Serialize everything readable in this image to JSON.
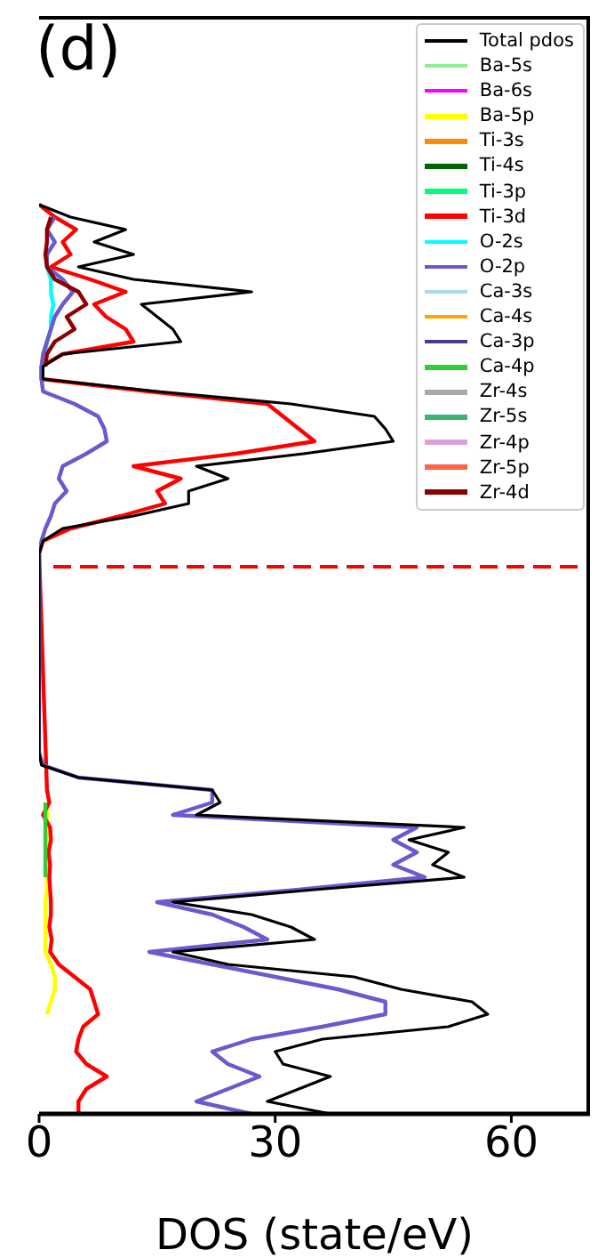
{
  "chart_data": {
    "type": "line",
    "orientation": "horizontal",
    "title": "(d)",
    "xlabel": "DOS (state/eV)",
    "categories": [
      null,
      null,
      null,
      null,
      null,
      null,
      null,
      null,
      null,
      null,
      null,
      null,
      null,
      null,
      null,
      null,
      null,
      null,
      null,
      null,
      null,
      null,
      null,
      null,
      null,
      null,
      null,
      null,
      null,
      null,
      null,
      null,
      null,
      null,
      null,
      null,
      null,
      null,
      null,
      null,
      null,
      null,
      null,
      null,
      null,
      null,
      null,
      null,
      null,
      null,
      null,
      null,
      null,
      null,
      null,
      null,
      null,
      null,
      null,
      null,
      null,
      null,
      null,
      null,
      null,
      null,
      null,
      null,
      null,
      null,
      null,
      null,
      null,
      null,
      null,
      null,
      null,
      null,
      null,
      null,
      null,
      null,
      null,
      null,
      null,
      null,
      null,
      null,
      null
    ],
    "xlim": [
      0,
      70
    ],
    "xticks": [
      0,
      30,
      60
    ],
    "tick_labels": "x",
    "legend": "top right",
    "line_style": "solid",
    "series": [
      {
        "name": "Total pdos",
        "color": "#000000",
        "values": [
          null,
          null,
          null,
          null,
          null,
          null,
          null,
          null,
          null,
          null,
          null,
          null,
          null,
          null,
          null,
          0,
          4,
          11,
          7,
          12,
          5,
          12,
          27,
          13,
          15,
          17,
          18,
          3,
          0.5,
          0.5,
          15,
          32,
          42.6,
          44,
          45,
          33.6,
          20,
          24,
          19,
          19,
          12,
          3,
          0.5,
          0,
          null,
          null,
          null,
          null,
          null,
          null,
          null,
          null,
          null,
          null,
          null,
          null,
          null,
          null,
          null,
          0,
          0.3,
          5,
          22,
          23,
          20,
          54,
          47,
          52,
          50,
          54,
          35,
          17,
          27,
          32,
          35,
          17,
          24,
          40,
          46,
          55,
          57,
          52,
          36,
          30,
          31,
          37,
          33,
          29,
          37
        ]
      },
      {
        "name": "Ba-5s",
        "color": "#90ee90",
        "values": [
          null,
          null,
          null,
          null,
          null,
          null,
          null,
          null,
          null,
          null,
          null,
          null,
          null,
          null,
          null,
          null,
          null,
          null,
          null,
          null,
          null,
          null,
          null,
          null,
          null,
          null,
          null,
          null,
          null,
          null,
          null,
          null,
          null,
          null,
          null,
          null,
          null,
          null,
          null,
          null,
          null,
          null,
          null,
          null,
          null,
          null,
          null,
          null,
          null,
          null,
          null,
          null,
          null,
          null,
          null,
          null,
          null,
          null,
          null,
          null,
          null,
          null,
          null,
          null,
          null,
          null,
          null,
          null,
          null,
          null,
          null,
          null,
          null,
          null,
          null,
          null,
          null,
          null,
          null,
          null,
          null,
          null,
          null,
          null,
          null,
          null,
          null,
          null,
          null
        ]
      },
      {
        "name": "Ba-6s",
        "color": "#ff00ff",
        "values": [
          null,
          null,
          null,
          null,
          null,
          null,
          null,
          null,
          null,
          null,
          null,
          null,
          null,
          null,
          null,
          null,
          null,
          null,
          null,
          null,
          null,
          null,
          null,
          null,
          null,
          null,
          null,
          null,
          null,
          null,
          null,
          null,
          null,
          null,
          null,
          null,
          null,
          null,
          null,
          null,
          null,
          null,
          null,
          null,
          null,
          null,
          null,
          null,
          null,
          null,
          null,
          null,
          null,
          null,
          null,
          null,
          null,
          null,
          null,
          null,
          null,
          null,
          null,
          null,
          null,
          null,
          null,
          null,
          null,
          null,
          null,
          null,
          null,
          null,
          null,
          null,
          null,
          null,
          null,
          null,
          null,
          null,
          null,
          null,
          null,
          null,
          null,
          null,
          null
        ]
      },
      {
        "name": "Ba-5p",
        "color": "#ffff00",
        "values": [
          null,
          null,
          null,
          null,
          null,
          null,
          null,
          null,
          null,
          null,
          null,
          null,
          null,
          null,
          null,
          null,
          null,
          null,
          null,
          null,
          null,
          null,
          null,
          null,
          null,
          null,
          null,
          null,
          null,
          null,
          null,
          null,
          null,
          null,
          null,
          null,
          null,
          null,
          null,
          null,
          null,
          null,
          null,
          null,
          null,
          null,
          null,
          null,
          null,
          null,
          null,
          null,
          null,
          null,
          null,
          null,
          null,
          null,
          null,
          null,
          null,
          null,
          null,
          1,
          1,
          1,
          1,
          1,
          1,
          1,
          1,
          0.8,
          0.8,
          0.8,
          0.8,
          0.8,
          1.5,
          2,
          2,
          1.5,
          1,
          null,
          null,
          null,
          null,
          null,
          null,
          null,
          null
        ]
      },
      {
        "name": "Ti-3s",
        "color": "#ff8c00",
        "values": [
          null,
          null,
          null,
          null,
          null,
          null,
          null,
          null,
          null,
          null,
          null,
          null,
          null,
          null,
          null,
          null,
          null,
          null,
          null,
          null,
          null,
          null,
          null,
          null,
          null,
          null,
          null,
          null,
          null,
          null,
          null,
          null,
          null,
          null,
          null,
          null,
          null,
          null,
          null,
          null,
          null,
          null,
          null,
          null,
          null,
          null,
          null,
          null,
          null,
          null,
          null,
          null,
          null,
          null,
          null,
          null,
          null,
          null,
          null,
          null,
          null,
          null,
          null,
          null,
          null,
          null,
          null,
          null,
          null,
          null,
          null,
          null,
          null,
          null,
          null,
          null,
          null,
          null,
          null,
          null,
          null,
          null,
          null,
          null,
          null,
          null,
          null,
          null,
          null
        ]
      },
      {
        "name": "Ti-4s",
        "color": "#006400",
        "values": [
          null,
          null,
          null,
          null,
          null,
          null,
          null,
          null,
          null,
          null,
          null,
          null,
          null,
          null,
          null,
          null,
          null,
          null,
          null,
          null,
          null,
          null,
          null,
          null,
          null,
          null,
          null,
          null,
          null,
          null,
          null,
          null,
          null,
          null,
          null,
          null,
          null,
          null,
          null,
          null,
          null,
          null,
          null,
          null,
          null,
          null,
          null,
          null,
          null,
          null,
          null,
          null,
          null,
          null,
          null,
          null,
          null,
          null,
          null,
          null,
          null,
          null,
          null,
          null,
          null,
          null,
          null,
          null,
          null,
          null,
          null,
          null,
          null,
          null,
          null,
          null,
          null,
          null,
          null,
          null,
          null,
          null,
          null,
          null,
          null,
          null,
          null,
          null,
          null
        ]
      },
      {
        "name": "Ti-3p",
        "color": "#00ff7f",
        "values": [
          null,
          null,
          null,
          null,
          null,
          null,
          null,
          null,
          null,
          null,
          null,
          null,
          null,
          null,
          null,
          null,
          null,
          null,
          null,
          null,
          null,
          null,
          null,
          null,
          null,
          null,
          null,
          null,
          null,
          null,
          null,
          null,
          null,
          null,
          null,
          null,
          null,
          null,
          null,
          null,
          null,
          null,
          null,
          null,
          null,
          null,
          null,
          null,
          null,
          null,
          null,
          null,
          null,
          null,
          null,
          null,
          null,
          null,
          null,
          null,
          null,
          null,
          null,
          null,
          null,
          null,
          null,
          null,
          null,
          null,
          null,
          null,
          null,
          null,
          null,
          null,
          null,
          null,
          null,
          null,
          null,
          null,
          null,
          null,
          null,
          null,
          null,
          null,
          null
        ]
      },
      {
        "name": "Ti-3d",
        "color": "#ff0000",
        "values": [
          null,
          null,
          null,
          null,
          null,
          null,
          null,
          null,
          null,
          null,
          null,
          null,
          null,
          null,
          null,
          0,
          2,
          4.7,
          3,
          4,
          1.5,
          6.5,
          11,
          7,
          8.5,
          11,
          12,
          3,
          0.3,
          0.3,
          14,
          29,
          31,
          33,
          35,
          25,
          12,
          18,
          15,
          16,
          10.4,
          4,
          0.5,
          0,
          null,
          null,
          null,
          null,
          null,
          null,
          null,
          null,
          null,
          null,
          null,
          null,
          null,
          null,
          null,
          null,
          null,
          null,
          1,
          1.3,
          0.5,
          1.4,
          1.5,
          1.2,
          1.4,
          1.3,
          1.4,
          1.5,
          1.5,
          1.3,
          1.6,
          1.4,
          2.5,
          4.5,
          6.5,
          7,
          7.5,
          5.6,
          5,
          4.7,
          6,
          8.6,
          6,
          5,
          5
        ]
      },
      {
        "name": "O-2s",
        "color": "#00ffff",
        "values": [
          null,
          null,
          null,
          null,
          null,
          null,
          null,
          null,
          null,
          null,
          null,
          null,
          null,
          null,
          null,
          null,
          null,
          null,
          null,
          null,
          1,
          1.5,
          1.5,
          1.8,
          1.5,
          1.5,
          1,
          0.8,
          null,
          null,
          null,
          null,
          null,
          null,
          null,
          null,
          null,
          null,
          null,
          null,
          null,
          null,
          null,
          null,
          null,
          null,
          null,
          null,
          null,
          null,
          null,
          null,
          null,
          null,
          null,
          null,
          null,
          null,
          null,
          null,
          null,
          null,
          null,
          null,
          null,
          null,
          null,
          null,
          null,
          null,
          null,
          null,
          null,
          null,
          null,
          null,
          null,
          null,
          null,
          null,
          null,
          null,
          null,
          null,
          null,
          null,
          null,
          null,
          null
        ]
      },
      {
        "name": "O-2p",
        "color": "#6a5acd",
        "values": [
          null,
          null,
          null,
          null,
          null,
          null,
          null,
          null,
          null,
          null,
          null,
          null,
          null,
          null,
          null,
          null,
          2,
          1,
          2,
          1,
          1,
          3,
          4.3,
          3,
          2,
          1.5,
          1,
          0.5,
          0.3,
          0.3,
          0.5,
          4.5,
          7.5,
          8.3,
          8.6,
          6,
          3,
          2.5,
          3.5,
          2,
          1.5,
          0.8,
          0.3,
          0,
          null,
          null,
          null,
          null,
          null,
          null,
          null,
          null,
          null,
          null,
          null,
          null,
          null,
          null,
          null,
          0,
          0.5,
          5,
          22,
          22,
          17,
          48,
          45,
          48,
          45,
          49,
          33,
          15,
          22,
          26,
          29,
          14,
          22,
          30,
          38,
          44,
          44,
          36,
          27,
          22,
          24,
          28,
          24,
          20,
          27
        ]
      },
      {
        "name": "Ca-3s",
        "color": "#add8e6",
        "values": [
          null,
          null,
          null,
          null,
          null,
          null,
          null,
          null,
          null,
          null,
          null,
          null,
          null,
          null,
          null,
          null,
          null,
          null,
          null,
          null,
          null,
          null,
          null,
          null,
          null,
          null,
          null,
          null,
          null,
          null,
          null,
          null,
          null,
          null,
          null,
          null,
          null,
          null,
          null,
          null,
          null,
          null,
          null,
          null,
          null,
          null,
          null,
          null,
          null,
          null,
          null,
          null,
          null,
          null,
          null,
          null,
          null,
          null,
          null,
          null,
          null,
          null,
          null,
          null,
          null,
          null,
          null,
          null,
          null,
          null,
          null,
          null,
          null,
          null,
          null,
          null,
          null,
          null,
          null,
          null,
          null,
          null,
          null,
          null,
          null,
          null,
          null,
          null,
          null
        ]
      },
      {
        "name": "Ca-4s",
        "color": "#ffa500",
        "values": [
          null,
          null,
          null,
          null,
          null,
          null,
          null,
          null,
          null,
          null,
          null,
          null,
          null,
          null,
          null,
          null,
          null,
          null,
          null,
          null,
          null,
          null,
          null,
          null,
          null,
          null,
          null,
          null,
          null,
          null,
          null,
          null,
          null,
          null,
          null,
          null,
          null,
          null,
          null,
          null,
          null,
          null,
          null,
          null,
          null,
          null,
          null,
          null,
          null,
          null,
          null,
          null,
          null,
          null,
          null,
          null,
          null,
          null,
          null,
          null,
          null,
          null,
          null,
          null,
          null,
          null,
          null,
          null,
          null,
          null,
          null,
          null,
          null,
          null,
          null,
          null,
          null,
          null,
          null,
          null,
          null,
          null,
          null,
          null,
          null,
          null,
          null,
          null,
          null
        ]
      },
      {
        "name": "Ca-3p",
        "color": "#483d8b",
        "values": [
          null,
          null,
          null,
          null,
          null,
          null,
          null,
          null,
          null,
          null,
          null,
          null,
          null,
          null,
          null,
          null,
          null,
          null,
          null,
          null,
          null,
          null,
          null,
          null,
          null,
          null,
          null,
          null,
          null,
          null,
          null,
          null,
          null,
          null,
          null,
          null,
          null,
          null,
          null,
          null,
          null,
          null,
          null,
          null,
          null,
          null,
          null,
          null,
          null,
          null,
          null,
          null,
          null,
          null,
          null,
          null,
          null,
          null,
          null,
          null,
          null,
          null,
          null,
          null,
          null,
          null,
          null,
          null,
          null,
          null,
          null,
          null,
          null,
          null,
          null,
          null,
          null,
          null,
          null,
          null,
          null,
          null,
          null,
          null,
          null,
          null,
          null,
          null,
          null
        ]
      },
      {
        "name": "Ca-4p",
        "color": "#32cd32",
        "values": [
          null,
          null,
          null,
          null,
          null,
          null,
          null,
          null,
          null,
          null,
          null,
          null,
          null,
          null,
          null,
          null,
          null,
          null,
          null,
          null,
          null,
          null,
          null,
          null,
          null,
          null,
          null,
          null,
          null,
          null,
          null,
          null,
          null,
          null,
          null,
          null,
          null,
          null,
          null,
          null,
          null,
          null,
          null,
          null,
          null,
          null,
          null,
          null,
          null,
          null,
          null,
          null,
          null,
          null,
          null,
          null,
          null,
          null,
          null,
          null,
          null,
          null,
          null,
          0.8,
          0.8,
          0.8,
          0.8,
          0.8,
          0.8,
          0.8,
          null,
          null,
          null,
          null,
          null,
          null,
          null,
          null,
          null,
          null,
          null,
          null,
          null,
          null,
          null,
          null,
          null,
          null,
          null
        ]
      },
      {
        "name": "Zr-4s",
        "color": "#a9a9a9",
        "values": [
          null,
          null,
          null,
          null,
          null,
          null,
          null,
          null,
          null,
          null,
          null,
          null,
          null,
          null,
          null,
          null,
          null,
          null,
          null,
          null,
          null,
          null,
          null,
          null,
          null,
          null,
          null,
          null,
          null,
          null,
          null,
          null,
          null,
          null,
          null,
          null,
          null,
          null,
          null,
          null,
          null,
          null,
          null,
          null,
          null,
          null,
          null,
          null,
          null,
          null,
          null,
          null,
          null,
          null,
          null,
          null,
          null,
          null,
          null,
          null,
          null,
          null,
          null,
          null,
          null,
          null,
          null,
          null,
          null,
          null,
          null,
          null,
          null,
          null,
          null,
          null,
          null,
          null,
          null,
          null,
          null,
          null,
          null,
          null,
          null,
          null,
          null,
          null,
          null
        ]
      },
      {
        "name": "Zr-5s",
        "color": "#3cb371",
        "values": [
          null,
          null,
          null,
          null,
          null,
          null,
          null,
          null,
          null,
          null,
          null,
          null,
          null,
          null,
          null,
          null,
          null,
          null,
          null,
          null,
          null,
          null,
          null,
          null,
          null,
          null,
          null,
          null,
          null,
          null,
          null,
          null,
          null,
          null,
          null,
          null,
          null,
          null,
          null,
          null,
          null,
          null,
          null,
          null,
          null,
          null,
          null,
          null,
          null,
          null,
          null,
          null,
          null,
          null,
          null,
          null,
          null,
          null,
          null,
          null,
          null,
          null,
          null,
          null,
          null,
          null,
          null,
          null,
          null,
          null,
          null,
          null,
          null,
          null,
          null,
          null,
          null,
          null,
          null,
          null,
          null,
          null,
          null,
          null,
          null,
          null,
          null,
          null,
          null
        ]
      },
      {
        "name": "Zr-4p",
        "color": "#dda0dd",
        "values": [
          null,
          null,
          null,
          null,
          null,
          null,
          null,
          null,
          null,
          null,
          null,
          null,
          null,
          null,
          null,
          null,
          null,
          null,
          null,
          null,
          null,
          null,
          null,
          null,
          null,
          null,
          null,
          null,
          null,
          null,
          null,
          null,
          null,
          null,
          null,
          null,
          null,
          null,
          null,
          null,
          null,
          null,
          null,
          null,
          null,
          null,
          null,
          null,
          null,
          null,
          null,
          null,
          null,
          null,
          null,
          null,
          null,
          null,
          null,
          null,
          null,
          null,
          null,
          null,
          null,
          null,
          null,
          null,
          null,
          null,
          null,
          null,
          null,
          null,
          null,
          null,
          null,
          null,
          null,
          null,
          null,
          null,
          null,
          null,
          null,
          null,
          null,
          null,
          null
        ]
      },
      {
        "name": "Zr-5p",
        "color": "#ff6347",
        "values": [
          null,
          null,
          null,
          null,
          null,
          null,
          null,
          null,
          null,
          null,
          null,
          null,
          null,
          null,
          null,
          null,
          null,
          null,
          null,
          null,
          null,
          null,
          null,
          null,
          null,
          null,
          null,
          null,
          null,
          null,
          null,
          null,
          null,
          null,
          null,
          null,
          null,
          null,
          null,
          null,
          null,
          null,
          null,
          null,
          null,
          null,
          null,
          null,
          null,
          null,
          null,
          null,
          null,
          null,
          null,
          null,
          null,
          null,
          null,
          null,
          null,
          null,
          null,
          null,
          null,
          null,
          null,
          null,
          null,
          null,
          null,
          null,
          null,
          null,
          null,
          null,
          null,
          null,
          null,
          null,
          null,
          null,
          null,
          null,
          null,
          null,
          null,
          null,
          null
        ]
      },
      {
        "name": "Zr-4d",
        "color": "#8b0000",
        "values": [
          null,
          null,
          null,
          null,
          null,
          null,
          null,
          null,
          null,
          null,
          null,
          null,
          null,
          null,
          null,
          null,
          1.5,
          1,
          1,
          0.8,
          1,
          2,
          5,
          6,
          3.5,
          4.5,
          2,
          1,
          0.8,
          null,
          null,
          null,
          null,
          null,
          null,
          null,
          null,
          null,
          null,
          null,
          null,
          null,
          null,
          null,
          null,
          null,
          null,
          null,
          null,
          null,
          null,
          null,
          null,
          null,
          null,
          null,
          null,
          null,
          null,
          null,
          null,
          null,
          null,
          null,
          null,
          null,
          null,
          null,
          null,
          null,
          null,
          null,
          null,
          null,
          null,
          null,
          null,
          null,
          null,
          null,
          null,
          null,
          null,
          null,
          null,
          null,
          null,
          null,
          null
        ]
      }
    ]
  }
}
